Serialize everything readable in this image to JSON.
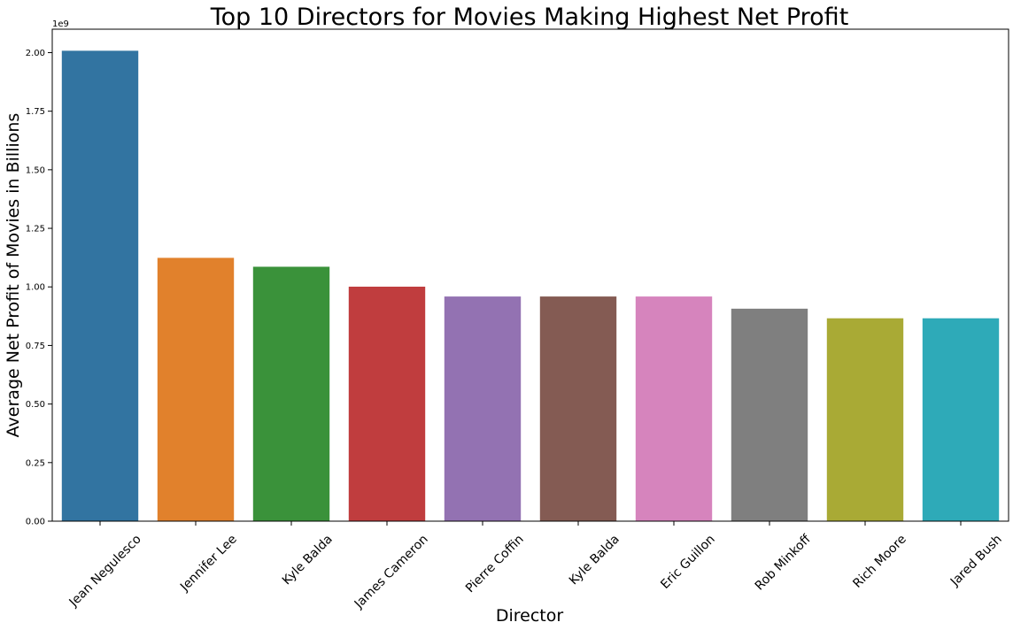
{
  "chart_data": {
    "type": "bar",
    "title": "Top 10 Directors for Movies Making Highest Net Profit",
    "xlabel": "Director",
    "ylabel": "Average Net Profit of Movies in Billions",
    "y_scale_label": "1e9",
    "categories": [
      "Jean Negulesco",
      "Jennifer Lee",
      "Kyle Balda",
      "James Cameron",
      "Pierre Coffin",
      "Kyle Balda",
      "Eric Guillon",
      "Rob Minkoff",
      "Rich Moore",
      "Jared Bush"
    ],
    "values": [
      2.008,
      1.124,
      1.086,
      1.001,
      0.959,
      0.959,
      0.959,
      0.907,
      0.866,
      0.866
    ],
    "ylim": [
      0,
      2.1
    ],
    "yticks": [
      0.0,
      0.25,
      0.5,
      0.75,
      1.0,
      1.25,
      1.5,
      1.75,
      2.0
    ],
    "ytick_labels": [
      "0.00",
      "0.25",
      "0.50",
      "0.75",
      "1.00",
      "1.25",
      "1.50",
      "1.75",
      "2.00"
    ],
    "colors": [
      "#3274a1",
      "#e1812c",
      "#3a923a",
      "#c03d3e",
      "#9372b2",
      "#845b53",
      "#d684bd",
      "#7f7f7f",
      "#a9aa35",
      "#2eaab8"
    ],
    "grid": false,
    "legend": "none"
  }
}
